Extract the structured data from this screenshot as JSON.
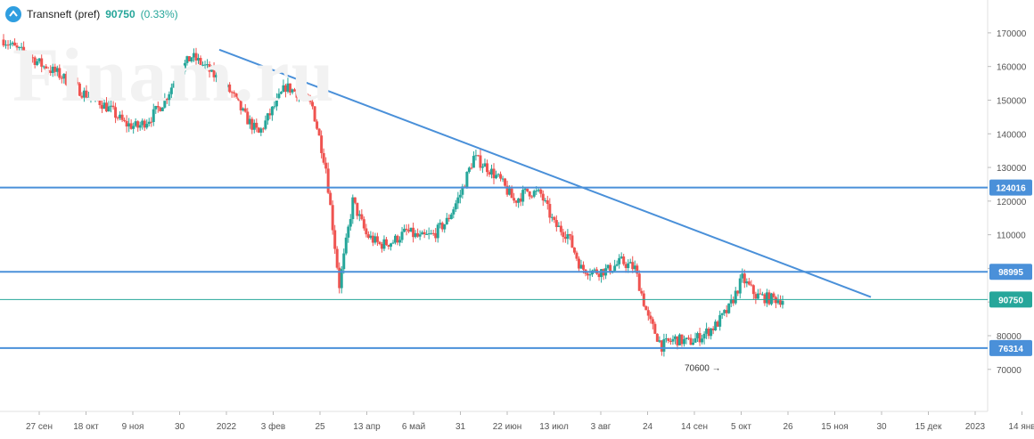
{
  "header": {
    "symbol": "Transneft (pref)",
    "last_price": "90750",
    "change": "(0.33%)"
  },
  "watermark": "Finam.ru",
  "colors": {
    "up": "#26a69a",
    "down": "#ef5350",
    "trendline": "#4a90d9",
    "level": "#4a90d9",
    "last_price_line": "#26a69a"
  },
  "chart_data": {
    "type": "candlestick",
    "ylim": [
      62000,
      175000
    ],
    "y_ticks": [
      70000,
      80000,
      90000,
      100000,
      110000,
      120000,
      130000,
      140000,
      150000,
      160000,
      170000
    ],
    "x_ticks": [
      "27 сен",
      "18 окт",
      "9 ноя",
      "30",
      "2022",
      "3 фев",
      "25",
      "13 апр",
      "6 май",
      "31",
      "22 июн",
      "13 июл",
      "3 авг",
      "24",
      "14 сен",
      "5 окт",
      "26",
      "15 ноя",
      "30",
      "15 дек",
      "2023",
      "14 янв"
    ],
    "close_series": [
      168000,
      165000,
      163000,
      160000,
      158000,
      155000,
      152000,
      150000,
      147000,
      143000,
      142000,
      145000,
      150000,
      158000,
      163000,
      160000,
      156000,
      152000,
      145000,
      140000,
      147000,
      154000,
      152000,
      148000,
      130000,
      95000,
      120000,
      110000,
      107000,
      108000,
      111000,
      109000,
      110000,
      114000,
      122000,
      133000,
      130000,
      126000,
      120000,
      123000,
      122000,
      113000,
      110000,
      100000,
      99000,
      99500,
      102000,
      100000,
      85000,
      77000,
      79000,
      78000,
      80000,
      83000,
      88000,
      97000,
      92000,
      91000,
      90750
    ],
    "levels": [
      {
        "label": "124016",
        "value": 124016
      },
      {
        "label": "98995",
        "value": 98995
      },
      {
        "label": "76314",
        "value": 76314
      }
    ],
    "last_price_line": {
      "label": "90750",
      "value": 90750
    },
    "trendline": {
      "start": {
        "x": "2022",
        "y": 165000
      },
      "end": {
        "x": "30",
        "y": 91500
      }
    },
    "annotations": [
      {
        "text": "70600",
        "value": 70600
      }
    ]
  }
}
